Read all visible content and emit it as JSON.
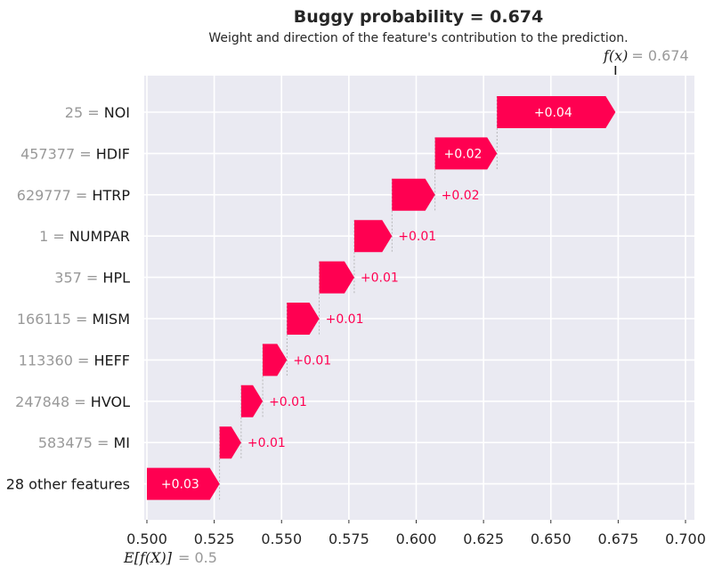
{
  "chart_data": {
    "type": "waterfall",
    "title": "Buggy probability = 0.674",
    "subtitle": "Weight and direction of the feature's contribution to the prediction.",
    "base_value": 0.5,
    "base_label": "E[f(X)]",
    "base_value_label": "= 0.5",
    "final_value": 0.674,
    "final_label": "f(x)",
    "final_value_label": "= 0.674",
    "xlim": [
      0.5,
      0.7
    ],
    "xticks": [
      "0.500",
      "0.525",
      "0.550",
      "0.575",
      "0.600",
      "0.625",
      "0.650",
      "0.675",
      "0.700"
    ],
    "xtick_values": [
      0.5,
      0.525,
      0.55,
      0.575,
      0.6,
      0.625,
      0.65,
      0.675,
      0.7
    ],
    "grid": true,
    "bar_color": "#ff0051",
    "background_color": "#eaeaf2",
    "features": [
      {
        "value": "25",
        "name": "NOI",
        "start": 0.63,
        "end": 0.674,
        "label": "+0.04"
      },
      {
        "value": "457377",
        "name": "HDIF",
        "start": 0.607,
        "end": 0.63,
        "label": "+0.02"
      },
      {
        "value": "629777",
        "name": "HTRP",
        "start": 0.591,
        "end": 0.607,
        "label": "+0.02"
      },
      {
        "value": "1",
        "name": "NUMPAR",
        "start": 0.577,
        "end": 0.591,
        "label": "+0.01"
      },
      {
        "value": "357",
        "name": "HPL",
        "start": 0.564,
        "end": 0.577,
        "label": "+0.01"
      },
      {
        "value": "166115",
        "name": "MISM",
        "start": 0.552,
        "end": 0.564,
        "label": "+0.01"
      },
      {
        "value": "113360",
        "name": "HEFF",
        "start": 0.543,
        "end": 0.552,
        "label": "+0.01"
      },
      {
        "value": "247848",
        "name": "HVOL",
        "start": 0.535,
        "end": 0.543,
        "label": "+0.01"
      },
      {
        "value": "583475",
        "name": "MI",
        "start": 0.527,
        "end": 0.535,
        "label": "+0.01"
      },
      {
        "value": "",
        "name": "28 other features",
        "start": 0.5,
        "end": 0.527,
        "label": "+0.03"
      }
    ]
  }
}
